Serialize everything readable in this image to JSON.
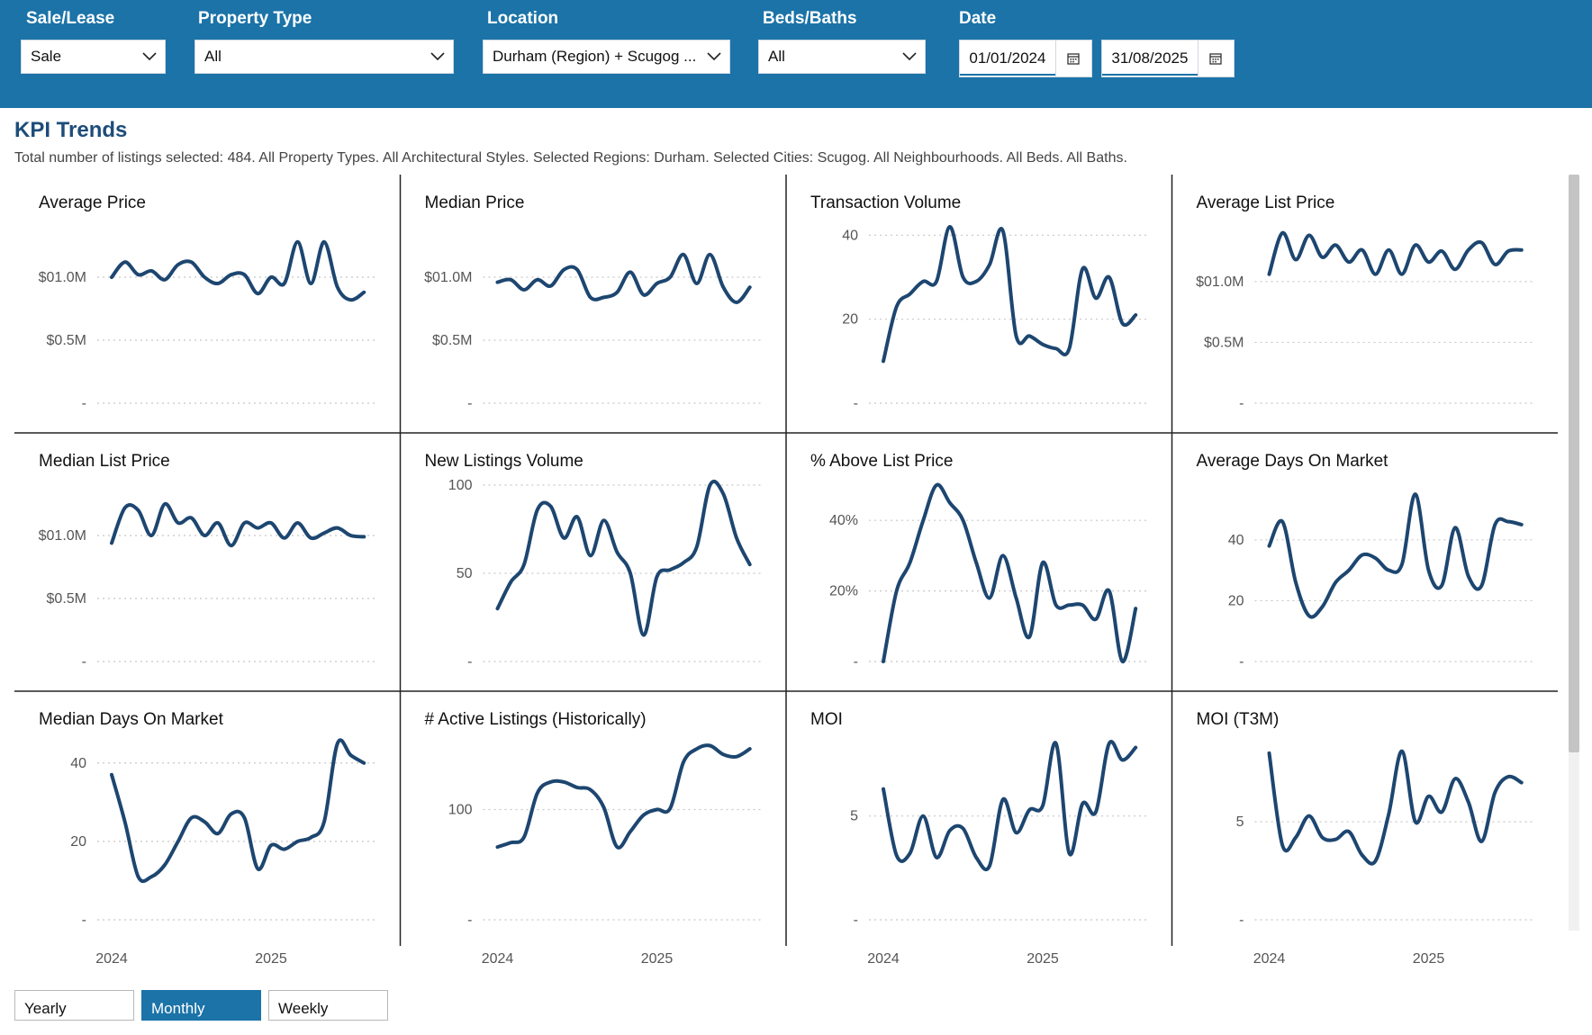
{
  "filters": {
    "sale_lease": {
      "label": "Sale/Lease",
      "value": "Sale"
    },
    "property_type": {
      "label": "Property Type",
      "value": "All"
    },
    "location": {
      "label": "Location",
      "value": "Durham (Region) + Scugog ..."
    },
    "beds_baths": {
      "label": "Beds/Baths",
      "value": "All"
    },
    "date": {
      "label": "Date",
      "start": "01/01/2024",
      "end": "31/08/2025"
    }
  },
  "colors": {
    "topbar": "#1b73a8",
    "line": "#1d4670",
    "title": "#1d4d7a",
    "grid": "#c8c8c8"
  },
  "page": {
    "title": "KPI Trends",
    "subtitle": "Total number of listings selected: 484. All Property Types. All Architectural Styles. Selected Regions: Durham. Selected Cities: Scugog. All Neighbourhoods. All Beds. All Baths."
  },
  "granularity": {
    "options": [
      "Yearly",
      "Monthly",
      "Weekly"
    ],
    "selected": "Monthly"
  },
  "chart_data": [
    {
      "type": "line",
      "title": "Average Price",
      "ylim": [
        0,
        1.4
      ],
      "yticks": [
        [
          0,
          "-"
        ],
        [
          0.5,
          "$0.5M"
        ],
        [
          1.0,
          "$01.0M"
        ]
      ],
      "x": [
        2024.0,
        2024.0833,
        2024.1667,
        2024.25,
        2024.3333,
        2024.4167,
        2024.5,
        2024.5833,
        2024.6667,
        2024.75,
        2024.8333,
        2024.9167,
        2025.0,
        2025.0833,
        2025.1667,
        2025.25,
        2025.3333,
        2025.4167,
        2025.5,
        2025.5833
      ],
      "values": [
        1.0,
        1.12,
        1.02,
        1.05,
        0.98,
        1.1,
        1.12,
        1.0,
        0.95,
        1.02,
        1.02,
        0.87,
        1.0,
        0.95,
        1.28,
        0.95,
        1.28,
        0.92,
        0.82,
        0.88
      ],
      "xticks": [
        "2024",
        "2025"
      ]
    },
    {
      "type": "line",
      "title": "Median Price",
      "ylim": [
        0,
        1.4
      ],
      "yticks": [
        [
          0,
          "-"
        ],
        [
          0.5,
          "$0.5M"
        ],
        [
          1.0,
          "$01.0M"
        ]
      ],
      "x": [
        2024.0,
        2024.0833,
        2024.1667,
        2024.25,
        2024.3333,
        2024.4167,
        2024.5,
        2024.5833,
        2024.6667,
        2024.75,
        2024.8333,
        2024.9167,
        2025.0,
        2025.0833,
        2025.1667,
        2025.25,
        2025.3333,
        2025.4167,
        2025.5,
        2025.5833
      ],
      "values": [
        0.96,
        0.98,
        0.9,
        0.98,
        0.93,
        1.06,
        1.06,
        0.84,
        0.84,
        0.88,
        1.04,
        0.86,
        0.95,
        1.0,
        1.18,
        0.95,
        1.18,
        0.92,
        0.8,
        0.92
      ],
      "xticks": [
        "2024",
        "2025"
      ]
    },
    {
      "type": "line",
      "title": "Transaction Volume",
      "ylim": [
        0,
        42
      ],
      "yticks": [
        [
          0,
          "-"
        ],
        [
          20,
          "20"
        ],
        [
          40,
          "40"
        ]
      ],
      "x": [
        2024.0,
        2024.0833,
        2024.1667,
        2024.25,
        2024.3333,
        2024.4167,
        2024.5,
        2024.5833,
        2024.6667,
        2024.75,
        2024.8333,
        2024.9167,
        2025.0,
        2025.0833,
        2025.1667,
        2025.25,
        2025.3333,
        2025.4167,
        2025.5,
        2025.5833
      ],
      "values": [
        10,
        23,
        26,
        29,
        29,
        42,
        30,
        29,
        33,
        41,
        16,
        16,
        14,
        13,
        13,
        32,
        25,
        30,
        19,
        21
      ],
      "xticks": [
        "2024",
        "2025"
      ]
    },
    {
      "type": "line",
      "title": "Average List Price",
      "ylim": [
        0,
        1.45
      ],
      "yticks": [
        [
          0,
          "-"
        ],
        [
          0.5,
          "$0.5M"
        ],
        [
          1.0,
          "$01.0M"
        ]
      ],
      "x": [
        2024.0,
        2024.0833,
        2024.1667,
        2024.25,
        2024.3333,
        2024.4167,
        2024.5,
        2024.5833,
        2024.6667,
        2024.75,
        2024.8333,
        2024.9167,
        2025.0,
        2025.0833,
        2025.1667,
        2025.25,
        2025.3333,
        2025.4167,
        2025.5,
        2025.5833
      ],
      "values": [
        1.06,
        1.4,
        1.18,
        1.38,
        1.2,
        1.3,
        1.16,
        1.26,
        1.06,
        1.26,
        1.06,
        1.3,
        1.16,
        1.25,
        1.1,
        1.26,
        1.32,
        1.14,
        1.25,
        1.26
      ],
      "xticks": [
        "2024",
        "2025"
      ]
    },
    {
      "type": "line",
      "title": "Median List Price",
      "ylim": [
        0,
        1.4
      ],
      "yticks": [
        [
          0,
          "-"
        ],
        [
          0.5,
          "$0.5M"
        ],
        [
          1.0,
          "$01.0M"
        ]
      ],
      "x": [
        2024.0,
        2024.0833,
        2024.1667,
        2024.25,
        2024.3333,
        2024.4167,
        2024.5,
        2024.5833,
        2024.6667,
        2024.75,
        2024.8333,
        2024.9167,
        2025.0,
        2025.0833,
        2025.1667,
        2025.25,
        2025.3333,
        2025.4167,
        2025.5,
        2025.5833
      ],
      "values": [
        0.94,
        1.22,
        1.2,
        1.0,
        1.25,
        1.1,
        1.14,
        1.0,
        1.1,
        0.92,
        1.1,
        1.06,
        1.1,
        0.98,
        1.1,
        0.98,
        1.02,
        1.06,
        1.0,
        0.99
      ],
      "xticks": [
        "2024",
        "2025"
      ]
    },
    {
      "type": "line",
      "title": "New Listings Volume",
      "ylim": [
        0,
        100
      ],
      "yticks": [
        [
          0,
          "-"
        ],
        [
          50,
          "50"
        ],
        [
          100,
          "100"
        ]
      ],
      "x": [
        2024.0,
        2024.0833,
        2024.1667,
        2024.25,
        2024.3333,
        2024.4167,
        2024.5,
        2024.5833,
        2024.6667,
        2024.75,
        2024.8333,
        2024.9167,
        2025.0,
        2025.0833,
        2025.1667,
        2025.25,
        2025.3333,
        2025.4167,
        2025.5,
        2025.5833
      ],
      "values": [
        30,
        45,
        55,
        86,
        88,
        70,
        82,
        60,
        80,
        62,
        50,
        15,
        48,
        52,
        56,
        65,
        100,
        95,
        70,
        55
      ],
      "xticks": [
        "2024",
        "2025"
      ]
    },
    {
      "type": "line",
      "title": "% Above List Price",
      "ylim": [
        0,
        50
      ],
      "yticks": [
        [
          0,
          "-"
        ],
        [
          20,
          "20%"
        ],
        [
          40,
          "40%"
        ]
      ],
      "x": [
        2024.0,
        2024.0833,
        2024.1667,
        2024.25,
        2024.3333,
        2024.4167,
        2024.5,
        2024.5833,
        2024.6667,
        2024.75,
        2024.8333,
        2024.9167,
        2025.0,
        2025.0833,
        2025.1667,
        2025.25,
        2025.3333,
        2025.4167,
        2025.5,
        2025.5833
      ],
      "values": [
        0,
        20,
        28,
        40,
        50,
        45,
        40,
        28,
        18,
        30,
        18,
        7,
        28,
        16,
        16,
        16,
        12,
        20,
        0,
        15
      ],
      "xticks": [
        "2024",
        "2025"
      ]
    },
    {
      "type": "line",
      "title": "Average Days On Market",
      "ylim": [
        0,
        58
      ],
      "yticks": [
        [
          0,
          "-"
        ],
        [
          20,
          "20"
        ],
        [
          40,
          "40"
        ]
      ],
      "x": [
        2024.0,
        2024.0833,
        2024.1667,
        2024.25,
        2024.3333,
        2024.4167,
        2024.5,
        2024.5833,
        2024.6667,
        2024.75,
        2024.8333,
        2024.9167,
        2025.0,
        2025.0833,
        2025.1667,
        2025.25,
        2025.3333,
        2025.4167,
        2025.5,
        2025.5833
      ],
      "values": [
        38,
        46,
        26,
        15,
        18,
        26,
        30,
        35,
        34,
        30,
        32,
        55,
        30,
        25,
        44,
        28,
        25,
        45,
        46,
        45
      ],
      "xticks": [
        "2024",
        "2025"
      ]
    },
    {
      "type": "line",
      "title": "Median Days On Market",
      "ylim": [
        0,
        45
      ],
      "yticks": [
        [
          0,
          "-"
        ],
        [
          20,
          "20"
        ],
        [
          40,
          "40"
        ]
      ],
      "x": [
        2024.0,
        2024.0833,
        2024.1667,
        2024.25,
        2024.3333,
        2024.4167,
        2024.5,
        2024.5833,
        2024.6667,
        2024.75,
        2024.8333,
        2024.9167,
        2025.0,
        2025.0833,
        2025.1667,
        2025.25,
        2025.3333,
        2025.4167,
        2025.5,
        2025.5833
      ],
      "values": [
        37,
        25,
        11,
        11,
        14,
        20,
        26,
        25,
        22,
        27,
        26,
        13,
        19,
        18,
        20,
        21,
        25,
        45,
        42,
        40
      ],
      "xticks": [
        "2024",
        "2025"
      ]
    },
    {
      "type": "line",
      "title": "# Active Listings (Historically)",
      "ylim": [
        0,
        160
      ],
      "yticks": [
        [
          0,
          "-"
        ],
        [
          100,
          "100"
        ]
      ],
      "x": [
        2024.0,
        2024.0833,
        2024.1667,
        2024.25,
        2024.3333,
        2024.4167,
        2024.5,
        2024.5833,
        2024.6667,
        2024.75,
        2024.8333,
        2024.9167,
        2025.0,
        2025.0833,
        2025.1667,
        2025.25,
        2025.3333,
        2025.4167,
        2025.5,
        2025.5833
      ],
      "values": [
        66,
        70,
        75,
        115,
        125,
        125,
        120,
        118,
        102,
        66,
        80,
        95,
        100,
        101,
        143,
        155,
        158,
        150,
        148,
        155
      ],
      "xticks": [
        "2024",
        "2025"
      ]
    },
    {
      "type": "line",
      "title": "MOI",
      "ylim": [
        0,
        8.5
      ],
      "yticks": [
        [
          0,
          "-"
        ],
        [
          5,
          "5"
        ]
      ],
      "x": [
        2024.0,
        2024.0833,
        2024.1667,
        2024.25,
        2024.3333,
        2024.4167,
        2024.5,
        2024.5833,
        2024.6667,
        2024.75,
        2024.8333,
        2024.9167,
        2025.0,
        2025.0833,
        2025.1667,
        2025.25,
        2025.3333,
        2025.4167,
        2025.5,
        2025.5833
      ],
      "values": [
        6.3,
        3.1,
        3.2,
        5.0,
        3.0,
        4.3,
        4.4,
        3.0,
        2.6,
        5.8,
        4.2,
        5.3,
        5.5,
        8.5,
        3.2,
        5.6,
        5.2,
        8.5,
        7.7,
        8.3
      ],
      "xticks": [
        "2024",
        "2025"
      ]
    },
    {
      "type": "line",
      "title": "MOI (T3M)",
      "ylim": [
        0,
        9
      ],
      "yticks": [
        [
          0,
          "-"
        ],
        [
          5,
          "5"
        ]
      ],
      "x": [
        2024.0,
        2024.0833,
        2024.1667,
        2024.25,
        2024.3333,
        2024.4167,
        2024.5,
        2024.5833,
        2024.6667,
        2024.75,
        2024.8333,
        2024.9167,
        2025.0,
        2025.0833,
        2025.1667,
        2025.25,
        2025.3333,
        2025.4167,
        2025.5,
        2025.5833
      ],
      "values": [
        8.5,
        3.8,
        4.2,
        5.3,
        4.2,
        4.1,
        4.5,
        3.3,
        3.0,
        5.4,
        8.6,
        5.0,
        6.3,
        5.5,
        7.2,
        6.0,
        4.0,
        6.5,
        7.3,
        7.0
      ],
      "xticks": [
        "2024",
        "2025"
      ]
    }
  ]
}
